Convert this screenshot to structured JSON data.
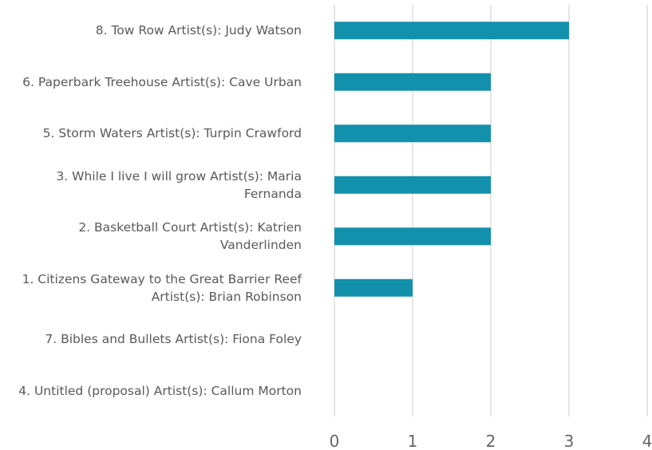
{
  "chart_data": {
    "type": "bar",
    "orientation": "horizontal",
    "categories": [
      "8. Tow Row Artist(s): Judy Watson",
      "6. Paperbark Treehouse Artist(s): Cave Urban",
      "5. Storm Waters Artist(s): Turpin Crawford",
      "3. While I live I will grow Artist(s): Maria Fernanda",
      "2. Basketball Court Artist(s): Katrien Vanderlinden",
      "1. Citizens Gateway to the Great Barrier Reef Artist(s): Brian Robinson",
      "7. Bibles and Bullets Artist(s): Fiona Foley",
      "4. Untitled (proposal) Artist(s): Callum Morton"
    ],
    "values": [
      3,
      2,
      2,
      2,
      2,
      1,
      0,
      0
    ],
    "color": "#1390ab",
    "xlim": [
      0,
      4
    ],
    "xticks": [
      0,
      1,
      2,
      3,
      4
    ],
    "grid": true
  }
}
